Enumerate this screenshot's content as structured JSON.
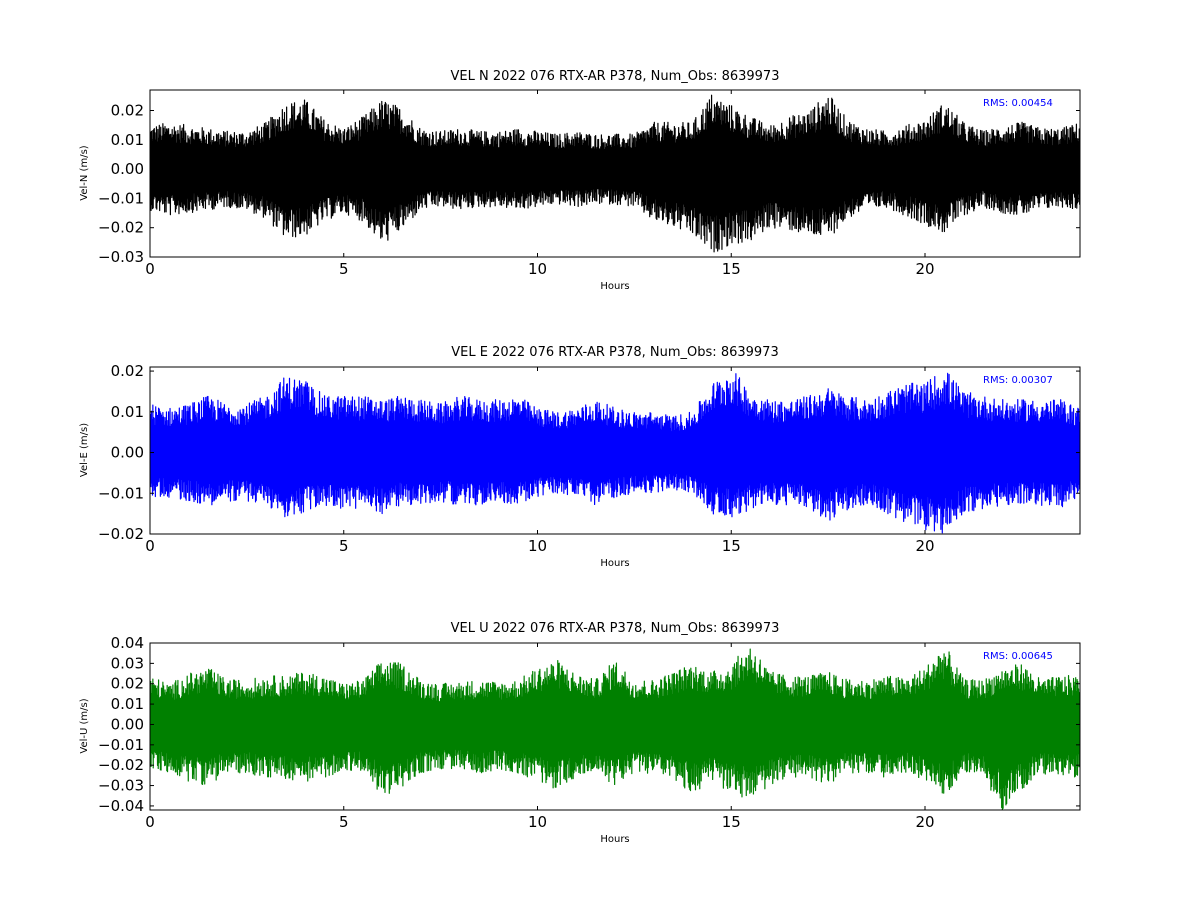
{
  "chart_data": [
    {
      "type": "line",
      "title": "VEL N 2022 076 RTX-AR  P378, Num_Obs: 8639973",
      "xlabel": "Hours",
      "ylabel": "Vel-N (m/s)",
      "xlim": [
        0,
        24
      ],
      "ylim": [
        -0.03,
        0.027
      ],
      "x_ticks": [
        0,
        5,
        10,
        15,
        20
      ],
      "x_tick_labels": [
        "0",
        "5",
        "10",
        "15",
        "20"
      ],
      "y_ticks": [
        0.02,
        0.01,
        0.0,
        -0.01,
        -0.02,
        -0.03
      ],
      "y_tick_labels": [
        "0.02",
        "0.01",
        "0.00",
        "−0.01",
        "−0.02",
        "−0.03"
      ],
      "grid": false,
      "annotation": "RMS:  0.00454",
      "series": [
        {
          "color": "#000000",
          "rms": 0.00454,
          "x": [
            0,
            0.5,
            1,
            1.5,
            2,
            2.5,
            3,
            3.5,
            4,
            4.5,
            5,
            5.5,
            6,
            6.5,
            7,
            7.5,
            8,
            8.5,
            9,
            9.5,
            10,
            10.5,
            11,
            11.5,
            12,
            12.5,
            13,
            13.5,
            14,
            14.5,
            15,
            15.5,
            16,
            16.5,
            17,
            17.5,
            18,
            18.5,
            19,
            19.5,
            20,
            20.5,
            21,
            21.5,
            22,
            22.5,
            23,
            23.5,
            24
          ],
          "upper": [
            0.015,
            0.016,
            0.015,
            0.014,
            0.013,
            0.013,
            0.016,
            0.023,
            0.024,
            0.017,
            0.014,
            0.018,
            0.024,
            0.021,
            0.014,
            0.013,
            0.014,
            0.013,
            0.013,
            0.014,
            0.013,
            0.012,
            0.013,
            0.012,
            0.012,
            0.012,
            0.016,
            0.016,
            0.016,
            0.026,
            0.022,
            0.018,
            0.015,
            0.018,
            0.02,
            0.026,
            0.017,
            0.014,
            0.013,
            0.015,
            0.017,
            0.023,
            0.016,
            0.013,
            0.015,
            0.016,
            0.014,
            0.014,
            0.016
          ],
          "lower": [
            -0.014,
            -0.016,
            -0.015,
            -0.014,
            -0.013,
            -0.014,
            -0.017,
            -0.024,
            -0.023,
            -0.018,
            -0.015,
            -0.018,
            -0.026,
            -0.021,
            -0.014,
            -0.013,
            -0.014,
            -0.013,
            -0.013,
            -0.014,
            -0.013,
            -0.012,
            -0.013,
            -0.012,
            -0.012,
            -0.013,
            -0.018,
            -0.02,
            -0.023,
            -0.029,
            -0.026,
            -0.025,
            -0.02,
            -0.021,
            -0.023,
            -0.024,
            -0.017,
            -0.014,
            -0.013,
            -0.016,
            -0.019,
            -0.022,
            -0.016,
            -0.013,
            -0.015,
            -0.016,
            -0.014,
            -0.013,
            -0.014
          ]
        }
      ]
    },
    {
      "type": "line",
      "title": "VEL E 2022 076 RTX-AR  P378, Num_Obs: 8639973",
      "xlabel": "Hours",
      "ylabel": "Vel-E (m/s)",
      "xlim": [
        0,
        24
      ],
      "ylim": [
        -0.02,
        0.021
      ],
      "x_ticks": [
        0,
        5,
        10,
        15,
        20
      ],
      "x_tick_labels": [
        "0",
        "5",
        "10",
        "15",
        "20"
      ],
      "y_ticks": [
        0.02,
        0.01,
        0.0,
        -0.01,
        -0.02
      ],
      "y_tick_labels": [
        "0.02",
        "0.01",
        "0.00",
        "−0.01",
        "−0.02"
      ],
      "grid": false,
      "annotation": "RMS:  0.00307",
      "series": [
        {
          "color": "#0000ff",
          "rms": 0.00307,
          "x": [
            0,
            0.5,
            1,
            1.5,
            2,
            2.5,
            3,
            3.5,
            4,
            4.5,
            5,
            5.5,
            6,
            6.5,
            7,
            7.5,
            8,
            8.5,
            9,
            9.5,
            10,
            10.5,
            11,
            11.5,
            12,
            12.5,
            13,
            13.5,
            14,
            14.5,
            15,
            15.5,
            16,
            16.5,
            17,
            17.5,
            18,
            18.5,
            19,
            19.5,
            20,
            20.5,
            21,
            21.5,
            22,
            22.5,
            23,
            23.5,
            24
          ],
          "upper": [
            0.012,
            0.011,
            0.012,
            0.014,
            0.012,
            0.012,
            0.014,
            0.019,
            0.018,
            0.014,
            0.014,
            0.014,
            0.013,
            0.014,
            0.013,
            0.012,
            0.014,
            0.013,
            0.013,
            0.014,
            0.011,
            0.01,
            0.011,
            0.013,
            0.011,
            0.01,
            0.01,
            0.009,
            0.01,
            0.017,
            0.021,
            0.015,
            0.013,
            0.013,
            0.014,
            0.016,
            0.014,
            0.013,
            0.015,
            0.017,
            0.017,
            0.021,
            0.015,
            0.014,
            0.013,
            0.013,
            0.013,
            0.013,
            0.011
          ],
          "lower": [
            -0.011,
            -0.011,
            -0.012,
            -0.013,
            -0.012,
            -0.012,
            -0.013,
            -0.016,
            -0.015,
            -0.013,
            -0.014,
            -0.014,
            -0.015,
            -0.013,
            -0.013,
            -0.012,
            -0.013,
            -0.013,
            -0.012,
            -0.013,
            -0.011,
            -0.01,
            -0.011,
            -0.013,
            -0.011,
            -0.01,
            -0.01,
            -0.009,
            -0.01,
            -0.015,
            -0.016,
            -0.014,
            -0.013,
            -0.013,
            -0.014,
            -0.017,
            -0.014,
            -0.013,
            -0.015,
            -0.018,
            -0.019,
            -0.02,
            -0.015,
            -0.014,
            -0.013,
            -0.013,
            -0.013,
            -0.014,
            -0.011
          ]
        }
      ]
    },
    {
      "type": "line",
      "title": "VEL U 2022 076 RTX-AR  P378, Num_Obs: 8639973",
      "xlabel": "Hours",
      "ylabel": "Vel-U (m/s)",
      "xlim": [
        0,
        24
      ],
      "ylim": [
        -0.042,
        0.04
      ],
      "x_ticks": [
        0,
        5,
        10,
        15,
        20
      ],
      "x_tick_labels": [
        "0",
        "5",
        "10",
        "15",
        "20"
      ],
      "y_ticks": [
        0.04,
        0.03,
        0.02,
        0.01,
        0.0,
        -0.01,
        -0.02,
        -0.03,
        -0.04
      ],
      "y_tick_labels": [
        "0.04",
        "0.03",
        "0.02",
        "0.01",
        "0.00",
        "−0.01",
        "−0.02",
        "−0.03",
        "−0.04"
      ],
      "grid": false,
      "annotation": "RMS:  0.00645",
      "series": [
        {
          "color": "#008000",
          "rms": 0.00645,
          "x": [
            0,
            0.5,
            1,
            1.5,
            2,
            2.5,
            3,
            3.5,
            4,
            4.5,
            5,
            5.5,
            6,
            6.5,
            7,
            7.5,
            8,
            8.5,
            9,
            9.5,
            10,
            10.5,
            11,
            11.5,
            12,
            12.5,
            13,
            13.5,
            14,
            14.5,
            15,
            15.5,
            16,
            16.5,
            17,
            17.5,
            18,
            18.5,
            19,
            19.5,
            20,
            20.5,
            21,
            21.5,
            22,
            22.5,
            23,
            23.5,
            24
          ],
          "upper": [
            0.024,
            0.02,
            0.025,
            0.028,
            0.022,
            0.022,
            0.024,
            0.024,
            0.026,
            0.024,
            0.02,
            0.022,
            0.032,
            0.03,
            0.022,
            0.02,
            0.021,
            0.022,
            0.021,
            0.022,
            0.028,
            0.032,
            0.025,
            0.022,
            0.032,
            0.022,
            0.022,
            0.026,
            0.03,
            0.026,
            0.03,
            0.04,
            0.026,
            0.024,
            0.024,
            0.026,
            0.022,
            0.022,
            0.024,
            0.023,
            0.028,
            0.04,
            0.022,
            0.022,
            0.028,
            0.03,
            0.022,
            0.024,
            0.024
          ],
          "lower": [
            -0.022,
            -0.024,
            -0.028,
            -0.03,
            -0.024,
            -0.024,
            -0.026,
            -0.027,
            -0.028,
            -0.027,
            -0.022,
            -0.024,
            -0.035,
            -0.032,
            -0.024,
            -0.022,
            -0.022,
            -0.024,
            -0.022,
            -0.024,
            -0.028,
            -0.032,
            -0.026,
            -0.024,
            -0.03,
            -0.024,
            -0.024,
            -0.028,
            -0.034,
            -0.028,
            -0.034,
            -0.038,
            -0.03,
            -0.026,
            -0.026,
            -0.03,
            -0.024,
            -0.024,
            -0.026,
            -0.024,
            -0.028,
            -0.035,
            -0.024,
            -0.026,
            -0.042,
            -0.032,
            -0.024,
            -0.026,
            -0.026
          ]
        }
      ]
    }
  ]
}
